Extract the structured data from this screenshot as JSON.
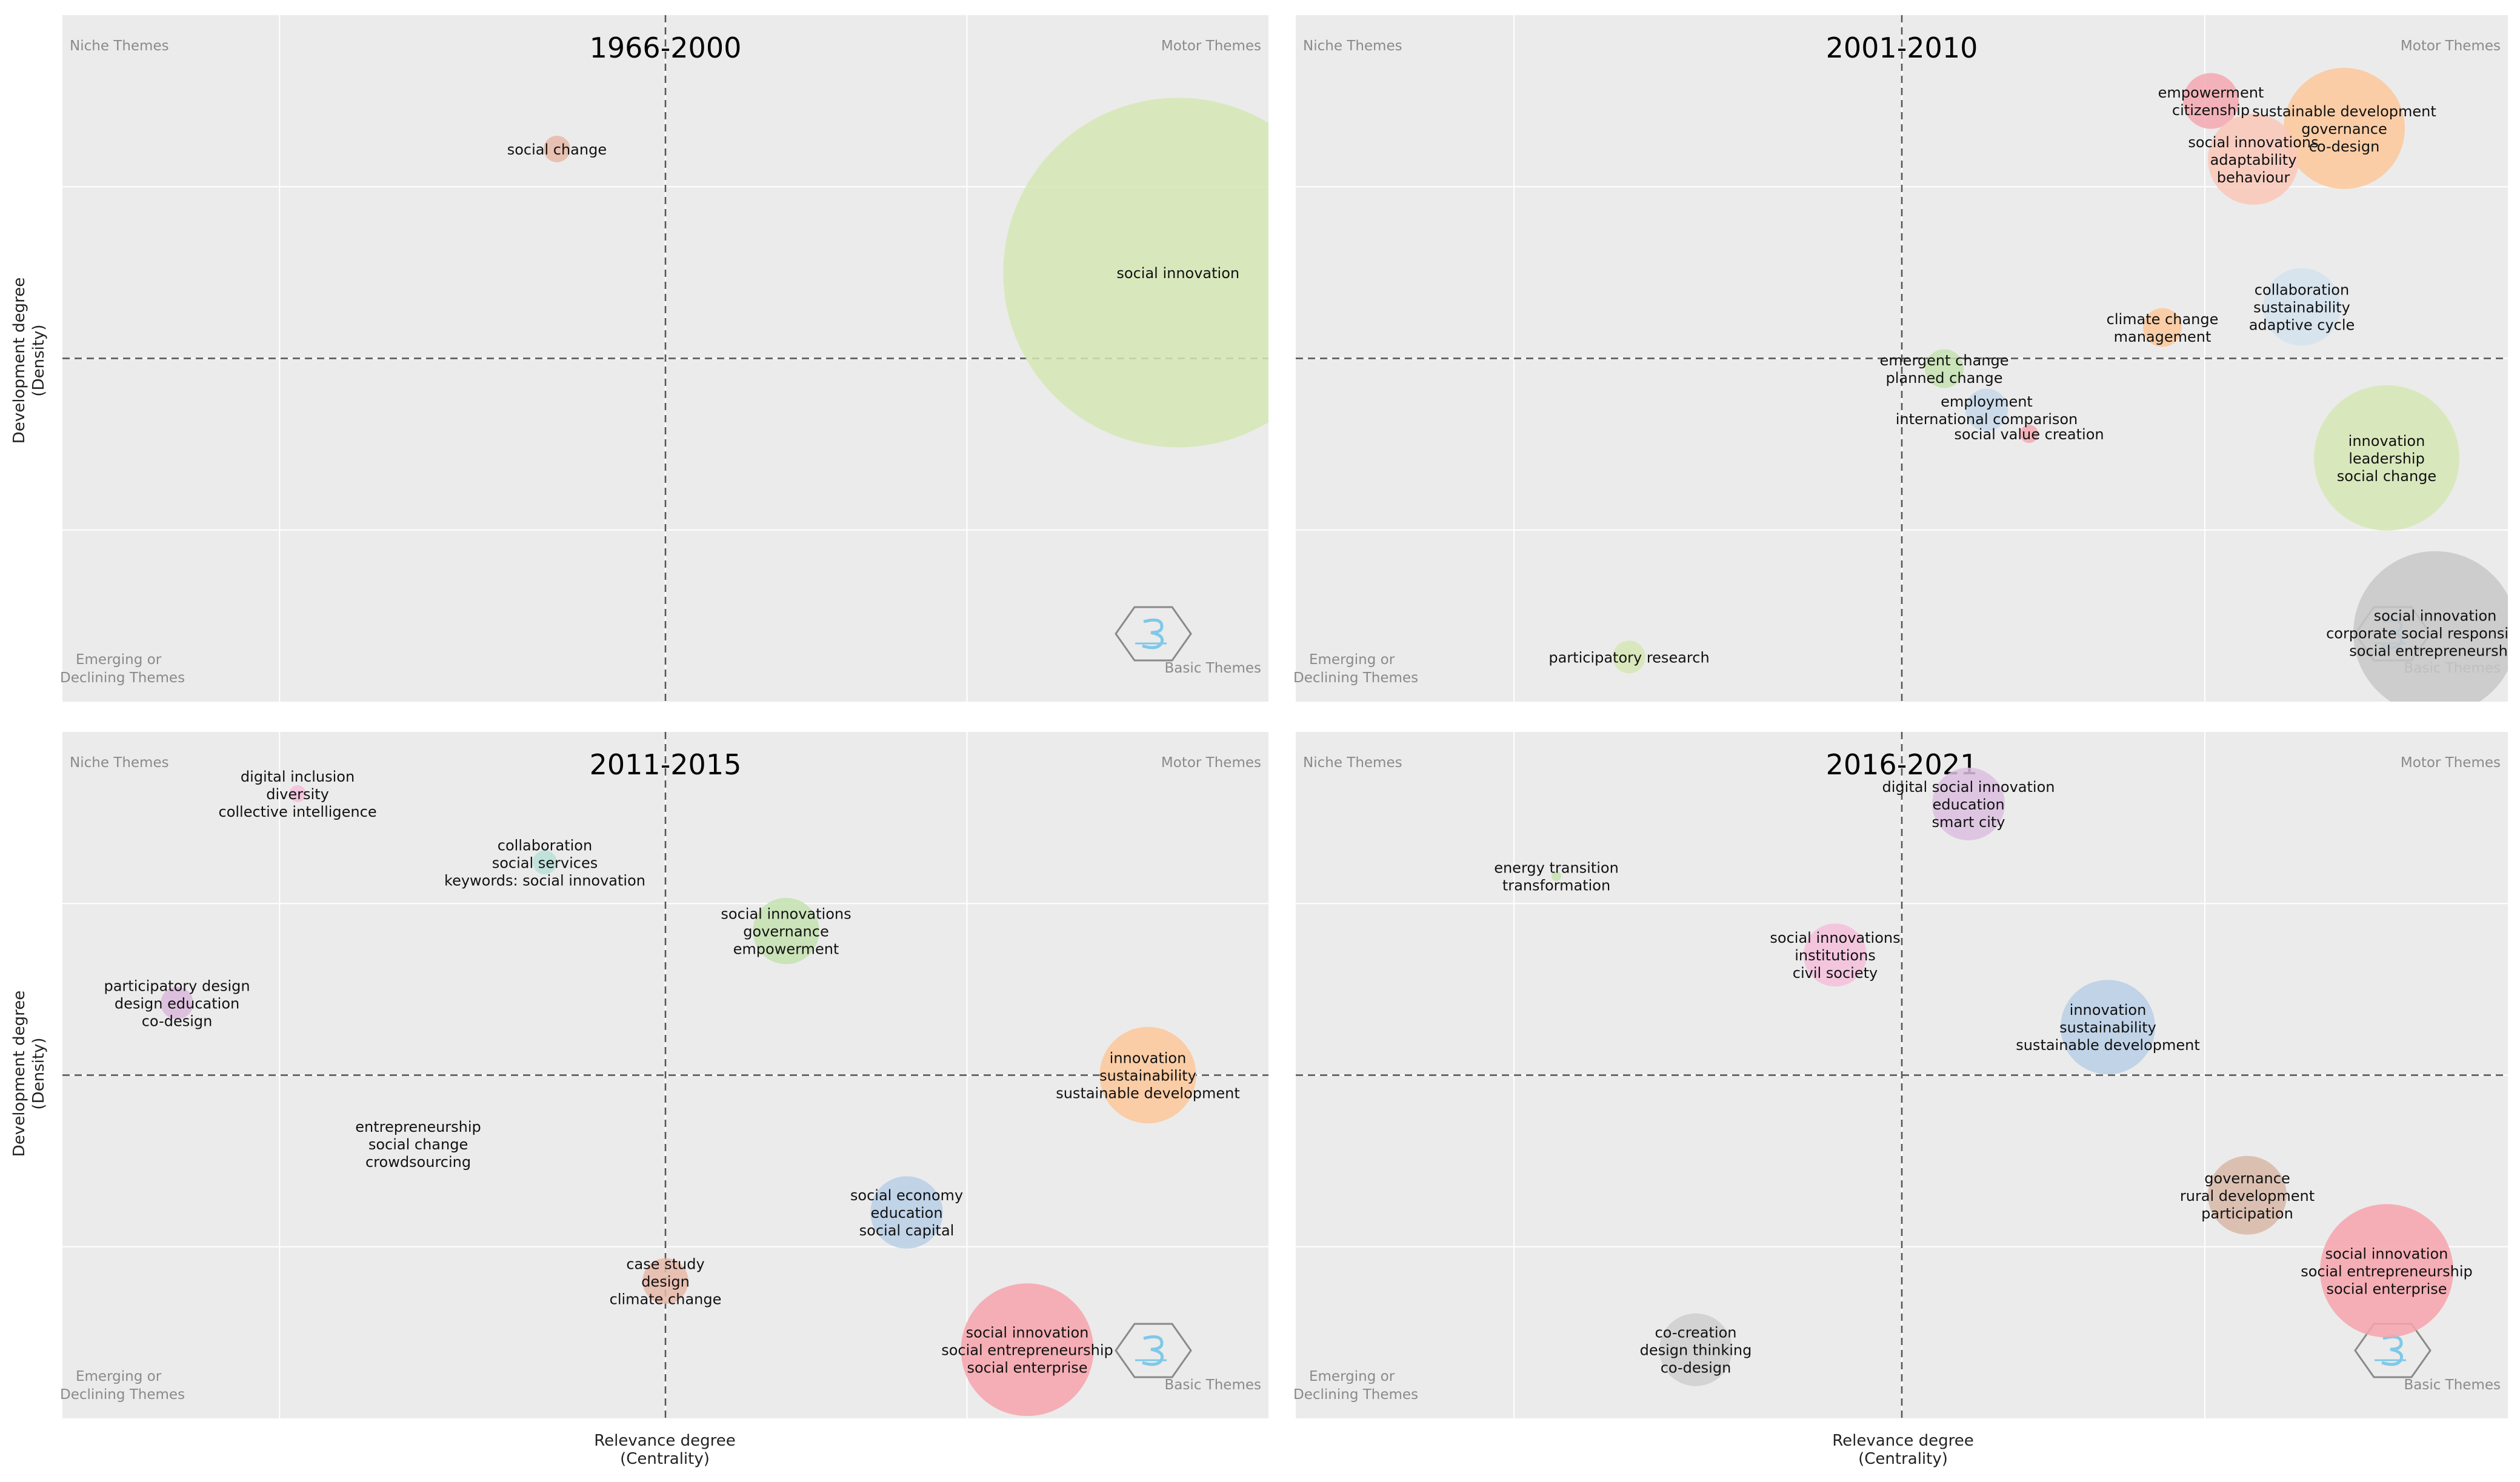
{
  "figure": {
    "x_axis_label": "Relevance degree",
    "x_axis_sublabel": "(Centrality)",
    "y_axis_label": "Development degree",
    "y_axis_sublabel": "(Density)",
    "quadrant_labels": {
      "top_left": "Niche Themes",
      "top_right": "Motor Themes",
      "bottom_left": [
        "Emerging or",
        "Declining Themes"
      ],
      "bottom_right": "Basic Themes"
    },
    "logo_icon": "bibliometrix-hexagon-logo"
  },
  "colors": {
    "panel_bg": "#ebebeb",
    "grid": "#ffffff",
    "quadrant_label": "#8a8a8a",
    "label_text": "#111111",
    "crosshair": "#555555"
  },
  "chart_data": [
    {
      "type": "scatter",
      "title": "1966-2000",
      "xlabel": "",
      "ylabel": "Development degree (Density)",
      "xlim": [
        0,
        100
      ],
      "ylim": [
        0,
        100
      ],
      "cross": [
        50,
        50
      ],
      "points": [
        {
          "labels": [
            "social change"
          ],
          "x": 41,
          "y": 80.5,
          "size": 2.2,
          "color": "#e8b8a8"
        },
        {
          "labels": [
            "social innovation"
          ],
          "x": 92.5,
          "y": 62.5,
          "size": 29,
          "color": "#d6e8b4"
        }
      ]
    },
    {
      "type": "scatter",
      "title": "2001-2010",
      "xlabel": "",
      "ylabel": "",
      "xlim": [
        0,
        100
      ],
      "ylim": [
        0,
        100
      ],
      "cross": [
        50,
        50
      ],
      "points": [
        {
          "labels": [
            "empowerment",
            "citizenship"
          ],
          "x": 75.5,
          "y": 87.5,
          "size": 4.6,
          "color": "#f5a8b0"
        },
        {
          "labels": [
            "sustainable development",
            "governance",
            "co-design"
          ],
          "x": 86.5,
          "y": 83.5,
          "size": 10,
          "color": "#fdc89a"
        },
        {
          "labels": [
            "social innovations",
            "adaptability",
            "behaviour"
          ],
          "x": 79,
          "y": 79,
          "size": 7.5,
          "color": "#fac8b8"
        },
        {
          "labels": [
            "collaboration",
            "sustainability",
            "adaptive cycle"
          ],
          "x": 83,
          "y": 57.5,
          "size": 6.4,
          "color": "#d4e3ef"
        },
        {
          "labels": [
            "climate change",
            "management"
          ],
          "x": 71.5,
          "y": 54.5,
          "size": 3.2,
          "color": "#fdc89a"
        },
        {
          "labels": [
            "emergent change",
            "planned change"
          ],
          "x": 53.5,
          "y": 48.5,
          "size": 3.2,
          "color": "#c4e2b0"
        },
        {
          "labels": [
            "employment",
            "international comparison"
          ],
          "x": 57,
          "y": 42.5,
          "size": 3.5,
          "color": "#c6d8ea"
        },
        {
          "labels": [
            "social value creation"
          ],
          "x": 60.5,
          "y": 39,
          "size": 1.5,
          "color": "#f5a8b0"
        },
        {
          "labels": [
            "innovation",
            "leadership",
            "social change"
          ],
          "x": 90,
          "y": 35.5,
          "size": 12,
          "color": "#d6e8b4"
        },
        {
          "labels": [
            "participatory research"
          ],
          "x": 27.5,
          "y": 6.5,
          "size": 2.7,
          "color": "#d6e8b4"
        },
        {
          "labels": [
            "social innovation",
            "corporate social responsibility",
            "social entrepreneurship"
          ],
          "x": 94,
          "y": 10,
          "size": 13.5,
          "color": "#c8c8c8"
        }
      ]
    },
    {
      "type": "scatter",
      "title": "2011-2015",
      "xlabel": "Relevance degree (Centrality)",
      "ylabel": "Development degree (Density)",
      "xlim": [
        0,
        100
      ],
      "ylim": [
        0,
        100
      ],
      "cross": [
        50,
        50
      ],
      "points": [
        {
          "labels": [
            "digital inclusion",
            "diversity",
            "collective intelligence"
          ],
          "x": 19.5,
          "y": 91,
          "size": 1.4,
          "color": "#f5c0dc"
        },
        {
          "labels": [
            "collaboration",
            "social services",
            "keywords: social innovation"
          ],
          "x": 40,
          "y": 81,
          "size": 2,
          "color": "#b8e0d8"
        },
        {
          "labels": [
            "social innovations",
            "governance",
            "empowerment"
          ],
          "x": 60,
          "y": 71,
          "size": 5.5,
          "color": "#c4e2b0"
        },
        {
          "labels": [
            "participatory design",
            "design education",
            "co-design"
          ],
          "x": 9.5,
          "y": 60.5,
          "size": 2.7,
          "color": "#dab8dc"
        },
        {
          "labels": [
            "innovation",
            "sustainability",
            "sustainable development"
          ],
          "x": 90,
          "y": 50,
          "size": 8,
          "color": "#fdc89a"
        },
        {
          "labels": [
            "entrepreneurship",
            "social change",
            "crowdsourcing"
          ],
          "x": 29.5,
          "y": 40,
          "size": 0,
          "color": "#ebebeb"
        },
        {
          "labels": [
            "social economy",
            "education",
            "social capital"
          ],
          "x": 70,
          "y": 30,
          "size": 6,
          "color": "#b8cfe6"
        },
        {
          "labels": [
            "case study",
            "design",
            "climate change"
          ],
          "x": 50,
          "y": 20,
          "size": 3.8,
          "color": "#e8b8a8"
        },
        {
          "labels": [
            "social innovation",
            "social entrepreneurship",
            "social enterprise"
          ],
          "x": 80,
          "y": 10,
          "size": 11,
          "color": "#f7a3ab"
        }
      ]
    },
    {
      "type": "scatter",
      "title": "2016-2021",
      "xlabel": "Relevance degree (Centrality)",
      "ylabel": "",
      "xlim": [
        0,
        100
      ],
      "ylim": [
        0,
        100
      ],
      "cross": [
        50,
        50
      ],
      "points": [
        {
          "labels": [
            "digital social innovation",
            "education",
            "smart city"
          ],
          "x": 55.5,
          "y": 89.5,
          "size": 6,
          "color": "#dcc0e0"
        },
        {
          "labels": [
            "energy transition",
            "transformation"
          ],
          "x": 21.5,
          "y": 79,
          "size": 0.8,
          "color": "#c4e2b0"
        },
        {
          "labels": [
            "social innovations",
            "institutions",
            "civil society"
          ],
          "x": 44.5,
          "y": 67.5,
          "size": 5.2,
          "color": "#f5c0dc"
        },
        {
          "labels": [
            "innovation",
            "sustainability",
            "sustainable development"
          ],
          "x": 67,
          "y": 57,
          "size": 7.8,
          "color": "#b8cfe6"
        },
        {
          "labels": [
            "governance",
            "rural development",
            "participation"
          ],
          "x": 78.5,
          "y": 32.5,
          "size": 6.5,
          "color": "#d8b8a8"
        },
        {
          "labels": [
            "social innovation",
            "social entrepreneurship",
            "social enterprise"
          ],
          "x": 90,
          "y": 21.5,
          "size": 11,
          "color": "#f7a3ab"
        },
        {
          "labels": [
            "co-creation",
            "design thinking",
            "co-design"
          ],
          "x": 33,
          "y": 10,
          "size": 6,
          "color": "#cfcfcf"
        }
      ]
    }
  ]
}
